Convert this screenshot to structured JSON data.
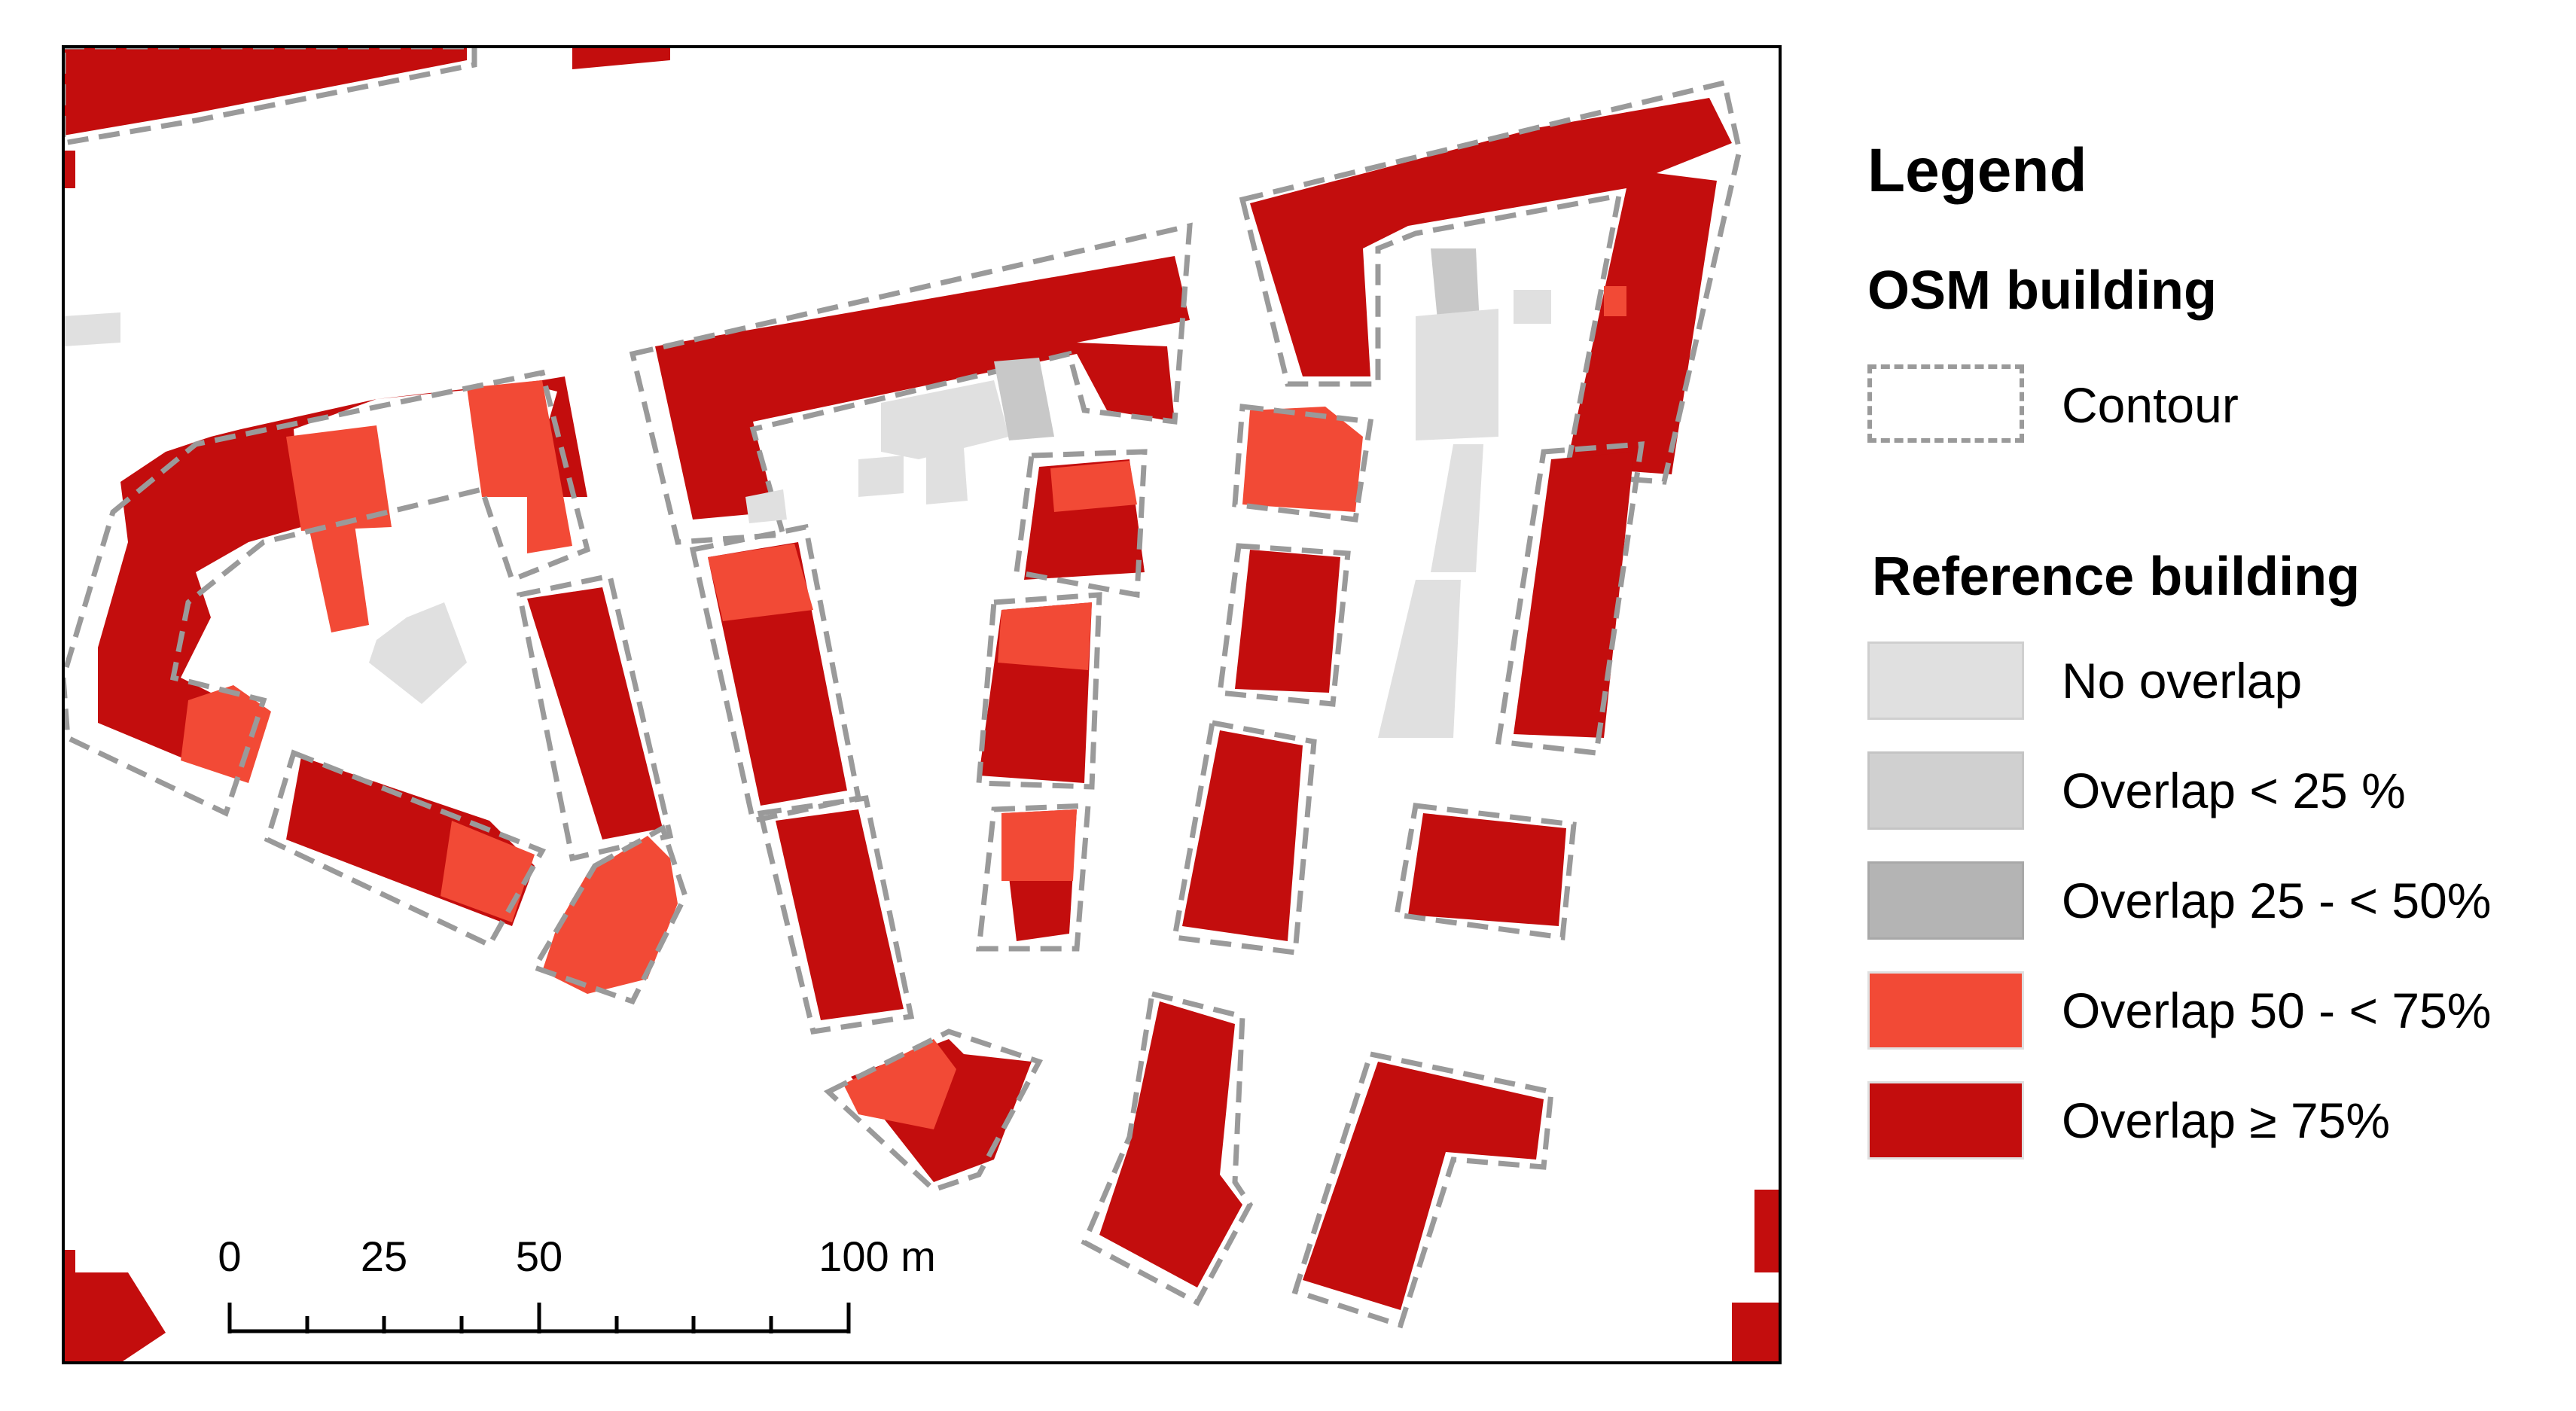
{
  "colors": {
    "no_overlap": "#e0e0e0",
    "overlap_lt_25": "#d0d0d0",
    "overlap_25_50": "#b4b4b4",
    "overlap_50_75": "#f24a36",
    "overlap_ge_75": "#c30d0d",
    "contour": "#9a9a9a"
  },
  "legend": {
    "title": "Legend",
    "osm_heading": "OSM building",
    "contour_label": "Contour",
    "reference_heading": "Reference building",
    "items": [
      {
        "label": "No overlap",
        "color_key": "no_overlap"
      },
      {
        "label": "Overlap < 25 %",
        "color_key": "overlap_lt_25"
      },
      {
        "label": "Overlap 25 - < 50%",
        "color_key": "overlap_25_50"
      },
      {
        "label": "Overlap 50 - < 75%",
        "color_key": "overlap_50_75"
      },
      {
        "label": "Overlap ≥ 75%",
        "color_key": "overlap_ge_75"
      }
    ]
  },
  "scale_bar": {
    "labels": [
      "0",
      "25",
      "50",
      "100 m"
    ]
  }
}
